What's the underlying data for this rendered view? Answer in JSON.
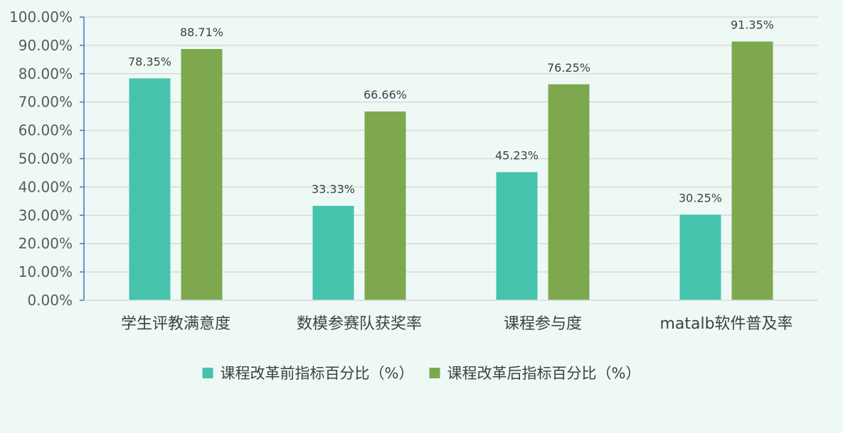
{
  "chart_data": {
    "type": "bar",
    "title": "",
    "xlabel": "",
    "ylabel": "",
    "categories": [
      "学生评教满意度",
      "数模参赛队获奖率",
      "课程参与度",
      "matalb软件普及率"
    ],
    "series": [
      {
        "name": "课程改革前指标百分比（%）",
        "values": [
          78.35,
          33.33,
          45.23,
          30.25
        ],
        "labels": [
          "78.35%",
          "33.33%",
          "45.23%",
          "30.25%"
        ],
        "color": "#45c3ad"
      },
      {
        "name": "课程改革后指标百分比（%）",
        "values": [
          88.71,
          66.66,
          76.25,
          91.35
        ],
        "labels": [
          "88.71%",
          "66.66%",
          "76.25%",
          "91.35%"
        ],
        "color": "#7ea84e"
      }
    ],
    "ylim": [
      0,
      100
    ],
    "ytick_step": 10,
    "ytick_labels": [
      "0.00%",
      "10.00%",
      "20.00%",
      "30.00%",
      "40.00%",
      "50.00%",
      "60.00%",
      "70.00%",
      "80.00%",
      "90.00%",
      "100.00%"
    ],
    "grid": true,
    "legend_position": "bottom",
    "colors": {
      "background": "#eef9f6",
      "gridline": "#d9d9d9",
      "axis": "#4472c4"
    }
  }
}
